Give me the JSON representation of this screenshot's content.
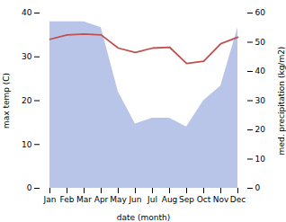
{
  "chart_data": {
    "type": "line",
    "xlabel": "date (month)",
    "ylabel": "max temp (C)",
    "y2label": "med. precipitation (kg/m2)",
    "categories": [
      "Jan",
      "Feb",
      "Mar",
      "Apr",
      "May",
      "Jun",
      "Jul",
      "Aug",
      "Sep",
      "Oct",
      "Nov",
      "Dec"
    ],
    "series": [
      {
        "type": "area",
        "axis": "y2",
        "color": "#b8c4e8",
        "values": [
          57.0,
          57.0,
          57.0,
          55.0,
          33.0,
          22.0,
          24.0,
          24.0,
          21.0,
          30.0,
          35.0,
          55.0
        ]
      },
      {
        "type": "line",
        "color": "#c0504d",
        "values": [
          34.0,
          35.0,
          35.2,
          35.0,
          32.0,
          31.0,
          32.0,
          32.2,
          28.5,
          29.0,
          33.0,
          34.5
        ]
      }
    ],
    "ylim": [
      0,
      40
    ],
    "yticks": [
      0,
      10,
      20,
      30,
      40
    ],
    "y2lim": [
      0,
      60
    ],
    "y2ticks": [
      0,
      10,
      20,
      30,
      40,
      50,
      60
    ],
    "grid": false
  }
}
